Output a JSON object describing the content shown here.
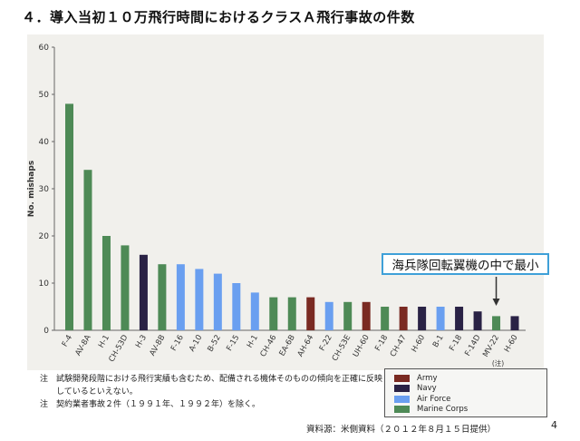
{
  "title": "４．導入当初１０万飛行時間におけるクラスＡ飛行事故の件数",
  "chart_data": {
    "type": "bar",
    "ylabel": "No. mishaps",
    "ylim": [
      0,
      60
    ],
    "yticks": [
      0,
      10,
      20,
      30,
      40,
      50,
      60
    ],
    "grid": false,
    "categories": [
      "F-4",
      "AV-8A",
      "H-1",
      "CH-53D",
      "H-3",
      "AV-8B",
      "F-16",
      "A-10",
      "B-52",
      "F-15",
      "H-1",
      "CH-46",
      "EA-6B",
      "AH-64",
      "F-22",
      "CH-53E",
      "UH-60",
      "F-18",
      "CH-47",
      "H-60",
      "B-1",
      "F-18",
      "F-14D",
      "MV-22",
      "H-60"
    ],
    "values": [
      48,
      34,
      20,
      18,
      16,
      14,
      14,
      13,
      12,
      10,
      8,
      7,
      7,
      7,
      6,
      6,
      6,
      5,
      5,
      5,
      5,
      5,
      4,
      3,
      3
    ],
    "services": [
      "Marine Corps",
      "Marine Corps",
      "Marine Corps",
      "Marine Corps",
      "Navy",
      "Marine Corps",
      "Air Force",
      "Air Force",
      "Air Force",
      "Air Force",
      "Air Force",
      "Marine Corps",
      "Marine Corps",
      "Army",
      "Air Force",
      "Marine Corps",
      "Army",
      "Marine Corps",
      "Army",
      "Navy",
      "Air Force",
      "Navy",
      "Navy",
      "Marine Corps",
      "Navy"
    ],
    "annotation_note": "(注)",
    "legend": [
      {
        "name": "Army",
        "color": "#7a2a22"
      },
      {
        "name": "Navy",
        "color": "#2a2245"
      },
      {
        "name": "Air Force",
        "color": "#6a9ff0"
      },
      {
        "name": "Marine Corps",
        "color": "#4e8a56"
      }
    ]
  },
  "callout": "海兵隊回転翼機の中で最小",
  "notes": [
    {
      "mark": "注",
      "text": "試験開発段階における飛行実績も含むため、配備される機体そのものの傾向を正確に反映しているといえない。"
    },
    {
      "mark": "注",
      "text": "契約業者事故２件（１９９１年、１９９２年）を除く。"
    }
  ],
  "source": "資料源：米側資料（２０１２年８月１５日提供）",
  "page_number": "4"
}
